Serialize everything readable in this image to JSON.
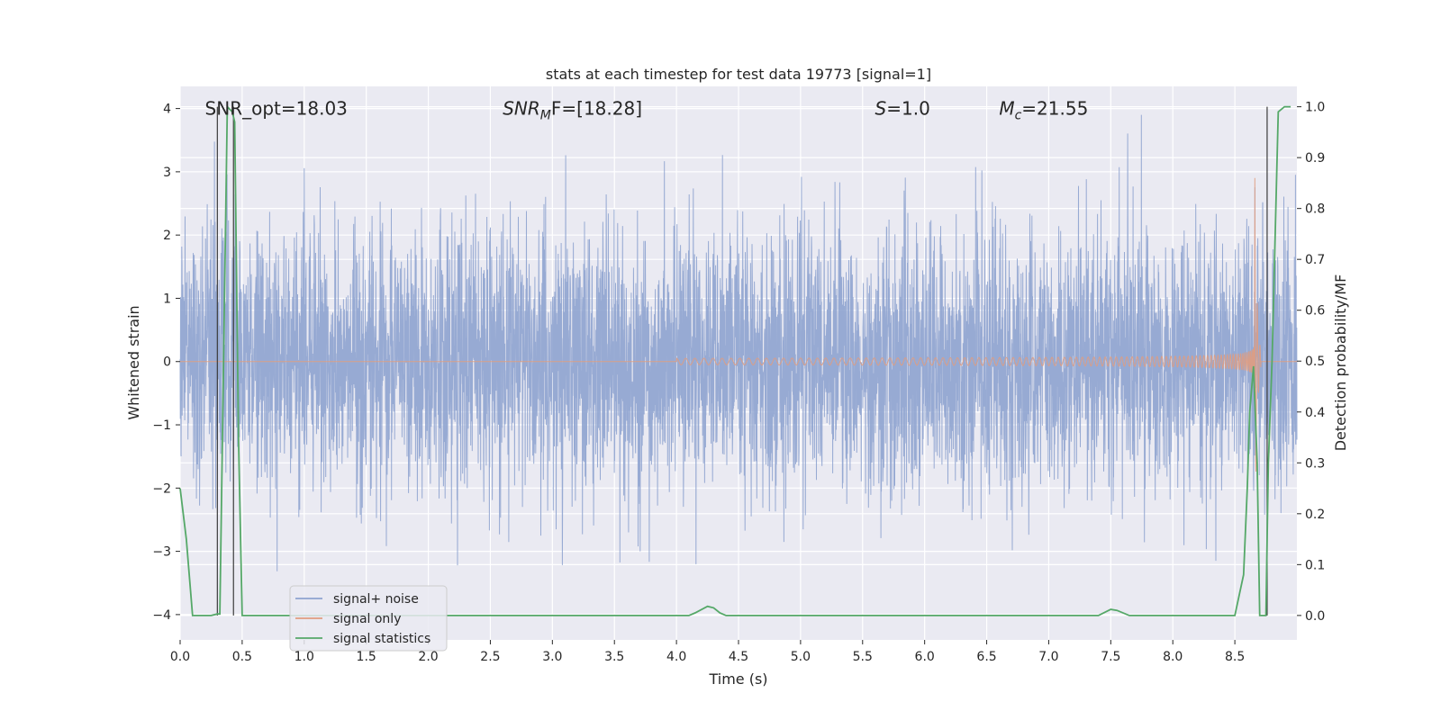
{
  "chart_data": {
    "type": "line",
    "title": "stats at each timestep for test data 19773 [signal=1]",
    "xlabel": "Time (s)",
    "ylabel": "Whitened strain",
    "y2label": "Detection probability/MF",
    "xlim": [
      0.0,
      9.0
    ],
    "ylim": [
      -4.4,
      4.35
    ],
    "y2lim": [
      -0.048,
      1.04
    ],
    "xticks": [
      "0.0",
      "0.5",
      "1.0",
      "1.5",
      "2.0",
      "2.5",
      "3.0",
      "3.5",
      "4.0",
      "4.5",
      "5.0",
      "5.5",
      "6.0",
      "6.5",
      "7.0",
      "7.5",
      "8.0",
      "8.5"
    ],
    "yticks": [
      "−4",
      "−3",
      "−2",
      "−1",
      "0",
      "1",
      "2",
      "3",
      "4"
    ],
    "y2ticks": [
      "0.0",
      "0.1",
      "0.2",
      "0.3",
      "0.4",
      "0.5",
      "0.6",
      "0.7",
      "0.8",
      "0.9",
      "1.0"
    ],
    "grid": true,
    "legend_position": "lower-left",
    "annotations": [
      {
        "text": "SNR_opt=18.03",
        "x": 0.2,
        "y": 4.0
      },
      {
        "text": "SNR",
        "sub": "M",
        "rest": "F=[18.28]",
        "x": 2.6,
        "y": 4.0
      },
      {
        "text": "S",
        "rest": "=1.0",
        "x": 5.6,
        "y": 4.0
      },
      {
        "text": "M",
        "sub": "c",
        "rest": "=21.55",
        "x": 6.6,
        "y": 4.0
      }
    ],
    "vertical_markers": [
      0.3,
      0.43,
      8.76
    ],
    "series": [
      {
        "name": "signal+ noise",
        "color": "#8ea3cf",
        "kind": "noise",
        "amplitude_sigma": 1.0,
        "extreme_range": [
          -3.7,
          3.9
        ]
      },
      {
        "name": "signal only",
        "color": "#e09c80",
        "kind": "chirp",
        "t_merge": 8.66,
        "peak": 3.2,
        "start": 4.0
      },
      {
        "name": "signal statistics",
        "color": "#55a868",
        "kind": "probability",
        "x": [
          0.0,
          0.05,
          0.1,
          0.2,
          0.25,
          0.3,
          0.32,
          0.38,
          0.42,
          0.44,
          0.47,
          0.5,
          1.0,
          2.0,
          3.0,
          3.5,
          3.6,
          4.0,
          4.1,
          4.15,
          4.25,
          4.3,
          4.35,
          4.4,
          5.0,
          6.0,
          7.0,
          7.4,
          7.5,
          7.55,
          7.65,
          8.0,
          8.5,
          8.57,
          8.6,
          8.62,
          8.65,
          8.68,
          8.7,
          8.75,
          8.77,
          8.8,
          8.85,
          8.9,
          8.95
        ],
        "values": [
          0.25,
          0.15,
          0.0,
          0.0,
          0.0,
          0.003,
          0.003,
          1.0,
          0.99,
          0.97,
          0.35,
          0.0,
          0.0,
          0.0,
          0.0,
          0.0,
          0.0,
          0.0,
          0.0,
          0.005,
          0.018,
          0.015,
          0.005,
          0.0,
          0.0,
          0.0,
          0.0,
          0.0,
          0.012,
          0.01,
          0.0,
          0.0,
          0.0,
          0.08,
          0.25,
          0.4,
          0.49,
          0.3,
          0.0,
          0.0,
          0.3,
          0.5,
          0.99,
          1.0,
          1.0
        ]
      }
    ]
  }
}
